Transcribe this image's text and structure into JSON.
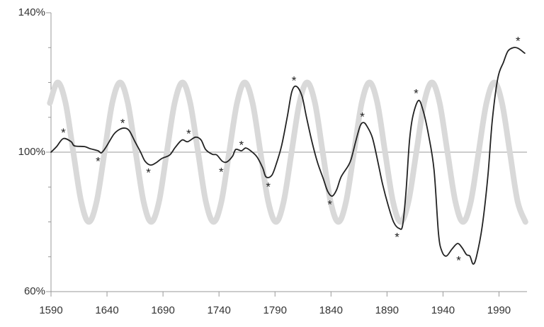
{
  "chart_data": {
    "type": "line",
    "xlim": [
      1590,
      2015
    ],
    "xticks": [
      1590,
      1640,
      1690,
      1740,
      1790,
      1840,
      1890,
      1940,
      1990
    ],
    "ylim": [
      60,
      140
    ],
    "yticks": [
      {
        "value": 60,
        "label": "60%"
      },
      {
        "value": 100,
        "label": "100%"
      },
      {
        "value": 140,
        "label": "140%"
      }
    ],
    "yminor_ticks": [
      70,
      80,
      90,
      110,
      120,
      130
    ],
    "reference_line": 100,
    "series": [
      {
        "color": "#d9d9d9",
        "width": 8,
        "x": [
          1589.0,
          1596.0,
          1603.0,
          1609.9,
          1616.9,
          1623.8,
          1630.8,
          1637.8,
          1644.7,
          1651.7,
          1658.6,
          1665.6,
          1672.6,
          1679.5,
          1686.5,
          1693.4,
          1700.4,
          1707.4,
          1714.3,
          1721.3,
          1728.2,
          1735.2,
          1742.2,
          1749.1,
          1756.1,
          1763.0,
          1770.0,
          1777.0,
          1783.9,
          1790.9,
          1797.8,
          1804.8,
          1811.8,
          1818.7,
          1825.7,
          1832.6,
          1839.6,
          1846.6,
          1853.5,
          1860.5,
          1867.4,
          1874.4,
          1881.4,
          1888.3,
          1895.3,
          1902.2,
          1909.2,
          1916.2,
          1923.1,
          1930.1,
          1937.0,
          1944.0,
          1951.0,
          1957.9,
          1964.9,
          1971.8,
          1978.8,
          1985.8,
          1992.7,
          1999.7,
          2006.6,
          2013.6
        ],
        "values": [
          114.1,
          120,
          114.1,
          100,
          85.9,
          80,
          85.9,
          100,
          114.1,
          120,
          114.1,
          100,
          85.9,
          80,
          85.9,
          100,
          114.1,
          120,
          114.1,
          100,
          85.9,
          80,
          85.9,
          100,
          114.1,
          120,
          114.1,
          100,
          85.9,
          80,
          85.9,
          100,
          114.1,
          120,
          114.1,
          100,
          85.9,
          80,
          85.9,
          100,
          114.1,
          120,
          114.1,
          100,
          85.9,
          80,
          85.9,
          100,
          114.1,
          120,
          114.1,
          100,
          85.9,
          80,
          85.9,
          100,
          114.1,
          120,
          114.1,
          100,
          85.9,
          80
        ]
      },
      {
        "color": "#222222",
        "width": 1.8,
        "x": [
          1590,
          1595,
          1601,
          1608,
          1611,
          1620,
          1625,
          1632,
          1635,
          1639,
          1646,
          1651,
          1656,
          1660,
          1665,
          1670,
          1674,
          1679,
          1684,
          1689,
          1696,
          1701,
          1707,
          1712,
          1719,
          1724,
          1728,
          1734,
          1738,
          1743,
          1747,
          1752,
          1755,
          1760,
          1764,
          1769,
          1774,
          1779,
          1782,
          1787,
          1791,
          1796,
          1801,
          1805,
          1809,
          1814,
          1818,
          1823,
          1828,
          1833,
          1837,
          1841,
          1845,
          1849,
          1855,
          1858,
          1862,
          1866,
          1869,
          1872,
          1877,
          1882,
          1886,
          1891,
          1896,
          1901,
          1904,
          1907,
          1910,
          1913,
          1918,
          1922,
          1927,
          1932,
          1936,
          1939,
          1943,
          1948,
          1953,
          1957,
          1961,
          1964,
          1967,
          1970,
          1975,
          1980,
          1984,
          1989,
          1994,
          1998,
          2003,
          2007,
          2013
        ],
        "values": [
          100,
          101.6,
          103.9,
          103,
          101.8,
          101.6,
          101,
          100.4,
          99.8,
          101.4,
          105.1,
          106.5,
          106.9,
          106.1,
          103,
          100,
          97.4,
          96.3,
          97,
          98.2,
          99.2,
          101.4,
          103.5,
          103,
          104.3,
          103.5,
          100.8,
          99.4,
          99.2,
          97.4,
          97.2,
          98.8,
          100.8,
          100.4,
          101.2,
          100.2,
          98.6,
          95.5,
          92.9,
          93.3,
          96.5,
          102,
          110.2,
          117.3,
          118.9,
          116.2,
          110.2,
          103,
          97,
          92.5,
          88.8,
          87.4,
          89.2,
          92.9,
          95.9,
          98,
          103,
          107.5,
          108.5,
          107.5,
          104.1,
          97,
          90.9,
          84.8,
          79.9,
          78.1,
          79.1,
          88.8,
          103,
          110.2,
          114.8,
          112.2,
          105.1,
          94.9,
          76.6,
          71.6,
          70.2,
          72.2,
          73.8,
          72.6,
          70.6,
          70.2,
          67.9,
          70.2,
          78.7,
          92.9,
          109.1,
          121.3,
          125.8,
          129,
          130,
          129.8,
          128.4
        ]
      }
    ],
    "annotations": [
      {
        "text": "*",
        "x": 1601,
        "y": 106
      },
      {
        "text": "*",
        "x": 1632,
        "y": 97.8
      },
      {
        "text": "*",
        "x": 1654,
        "y": 108.7
      },
      {
        "text": "*",
        "x": 1677,
        "y": 94.5
      },
      {
        "text": "*",
        "x": 1713,
        "y": 105.7
      },
      {
        "text": "*",
        "x": 1742,
        "y": 94.7
      },
      {
        "text": "*",
        "x": 1760,
        "y": 102.4
      },
      {
        "text": "*",
        "x": 1784,
        "y": 90.5
      },
      {
        "text": "*",
        "x": 1807,
        "y": 120.9
      },
      {
        "text": "*",
        "x": 1839,
        "y": 85.4
      },
      {
        "text": "*",
        "x": 1868,
        "y": 110.6
      },
      {
        "text": "*",
        "x": 1899,
        "y": 76
      },
      {
        "text": "*",
        "x": 1916,
        "y": 117.3
      },
      {
        "text": "*",
        "x": 1954,
        "y": 69.3
      },
      {
        "text": "*",
        "x": 2007,
        "y": 132.3
      }
    ]
  }
}
